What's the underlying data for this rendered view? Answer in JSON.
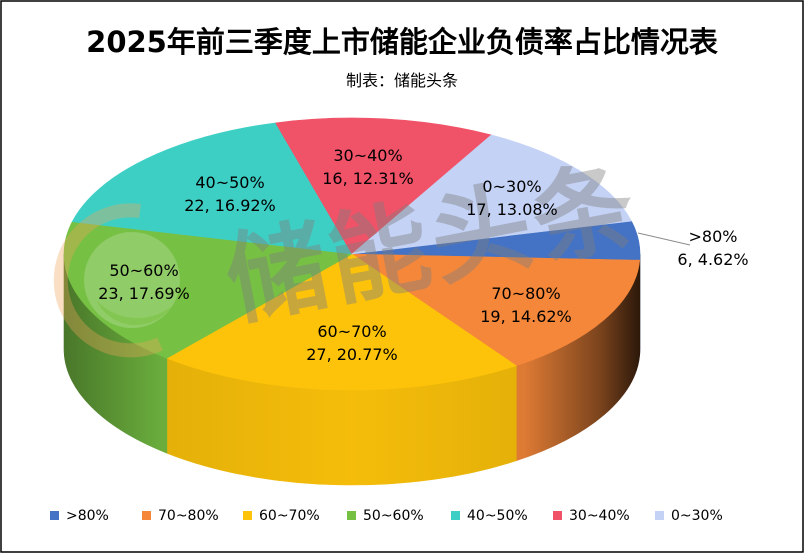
{
  "chart_data": {
    "type": "pie",
    "style": "3d",
    "title": "2025年前三季度上市储能企业负债率占比情况表",
    "subtitle": "制表：储能头条",
    "categories": [
      ">80%",
      "70~80%",
      "60~70%",
      "50~60%",
      "40~50%",
      "30~40%",
      "0~30%"
    ],
    "values": [
      6,
      19,
      27,
      23,
      22,
      16,
      17
    ],
    "percentages": [
      4.62,
      14.62,
      20.77,
      17.69,
      16.92,
      12.31,
      13.08
    ],
    "data_labels": [
      "6, 4.62%",
      "19, 14.62%",
      "27, 20.77%",
      "23, 17.69%",
      "22, 16.92%",
      "16, 12.31%",
      "17, 13.08%"
    ],
    "colors": [
      "#4472C4",
      "#F5873A",
      "#FDC30A",
      "#76C043",
      "#3ECFC4",
      "#F05268",
      "#C4D2F5"
    ],
    "legend_position": "bottom"
  },
  "watermark": {
    "text": "储能头条",
    "logo": "circle-logo-icon"
  }
}
